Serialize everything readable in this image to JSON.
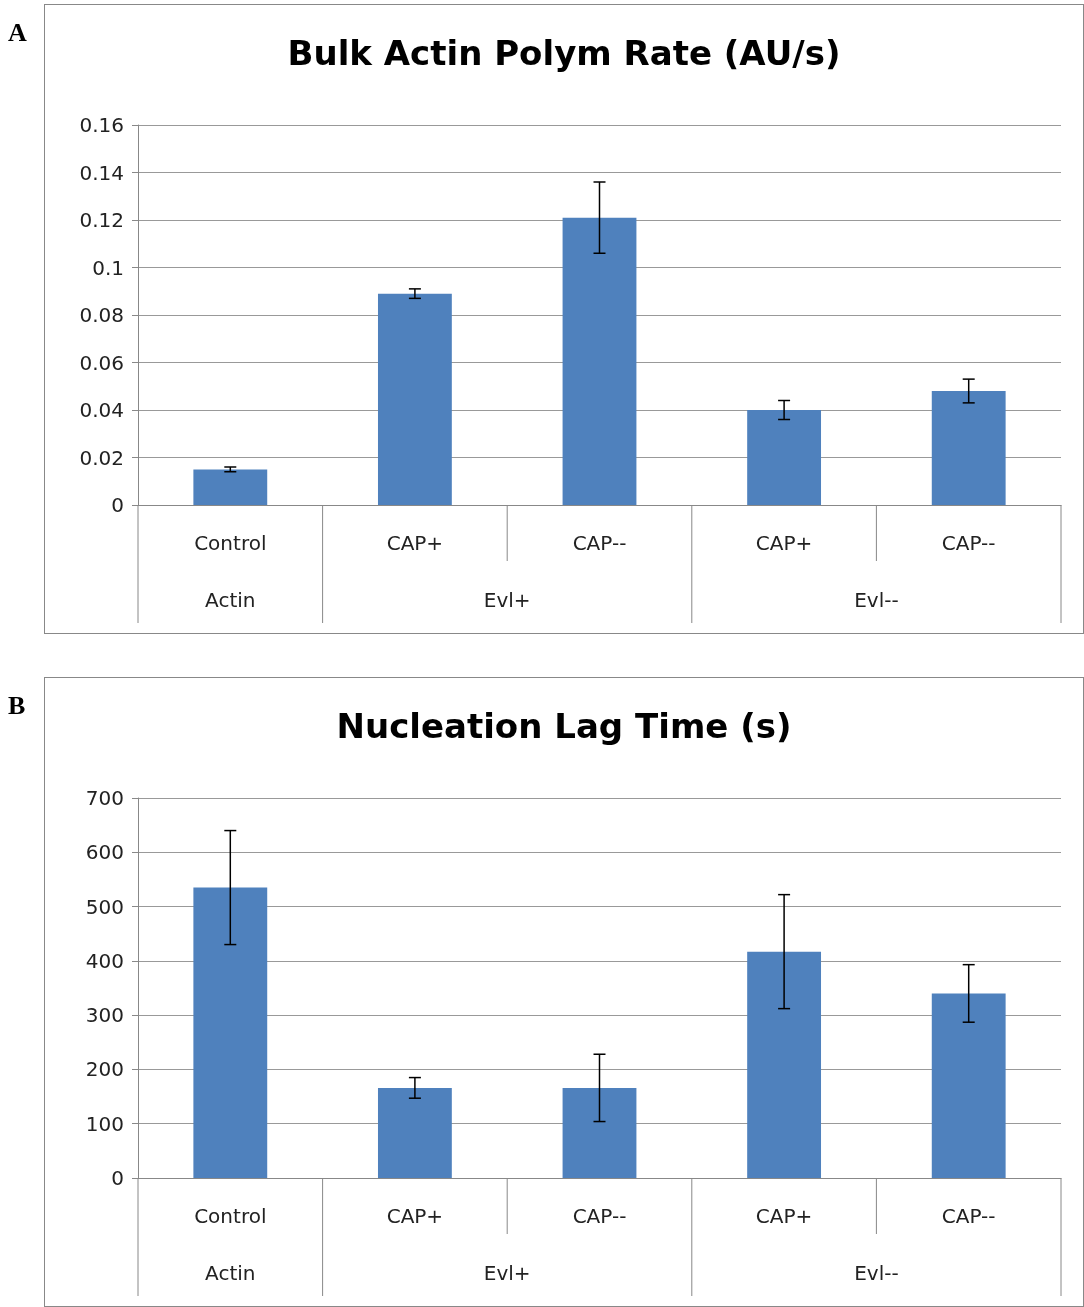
{
  "chart_data": [
    {
      "type": "bar",
      "title": "Bulk Actin Polym Rate (AU/s)",
      "categories": [
        "Control",
        "CAP+",
        "CAP--",
        "CAP+",
        "CAP--"
      ],
      "values": [
        0.015,
        0.089,
        0.121,
        0.04,
        0.048
      ],
      "errors": [
        0.001,
        0.002,
        0.015,
        0.004,
        0.005
      ],
      "color": "#4f81bd",
      "ylim": [
        0,
        0.16
      ],
      "yticks": [
        0,
        0.02,
        0.04,
        0.06,
        0.08,
        0.1,
        0.12,
        0.14,
        0.16
      ],
      "grid": "y",
      "annotations": [
        "A",
        "Actin",
        "Evl+",
        "Evl--"
      ]
    },
    {
      "type": "bar",
      "title": "Nucleation Lag Time (s)",
      "categories": [
        "Control",
        "CAP+",
        "CAP--",
        "CAP+",
        "CAP--"
      ],
      "values": [
        535,
        166,
        166,
        417,
        340
      ],
      "errors": [
        105,
        19,
        62,
        105,
        53
      ],
      "color": "#4f81bd",
      "ylim": [
        0,
        700
      ],
      "yticks": [
        0,
        100,
        200,
        300,
        400,
        500,
        600,
        700
      ],
      "grid": "y",
      "annotations": [
        "B",
        "Actin",
        "Evl+",
        "Evl--"
      ]
    }
  ]
}
